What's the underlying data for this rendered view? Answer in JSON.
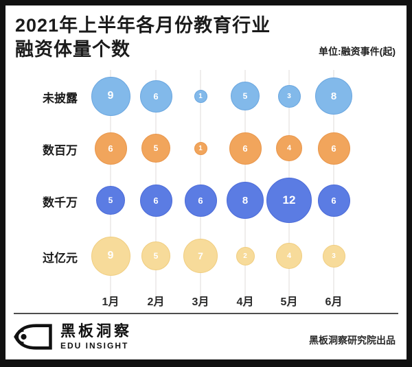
{
  "header": {
    "title_line1": "2021年上半年各月份教育行业",
    "title_line2": "融资体量个数",
    "unit_label": "单位:融资事件(起)"
  },
  "chart_data": {
    "type": "bubble",
    "title": "2021年上半年各月份教育行业融资体量个数",
    "unit": "单位:融资事件(起)",
    "categories": [
      "1月",
      "2月",
      "3月",
      "4月",
      "5月",
      "6月"
    ],
    "series": [
      {
        "name": "未披露",
        "color": "#82B9EA",
        "border_color": "#68A5DF",
        "values": [
          9,
          6,
          1,
          5,
          3,
          8
        ]
      },
      {
        "name": "数百万",
        "color": "#F1A55C",
        "border_color": "#E9964B",
        "values": [
          6,
          5,
          1,
          6,
          4,
          6
        ]
      },
      {
        "name": "数千万",
        "color": "#5B7CE3",
        "border_color": "#4C6BD8",
        "values": [
          5,
          6,
          6,
          8,
          12,
          6
        ]
      },
      {
        "name": "过亿元",
        "color": "#F7DB9A",
        "border_color": "#F0CD7F",
        "values": [
          9,
          5,
          7,
          2,
          4,
          3
        ]
      }
    ],
    "size_encoding": "bubble diameter proportional to sqrt(value)",
    "grid": "faint vertical line per month column",
    "legend_position": "none",
    "value_label_color": "#ffffff"
  },
  "footer": {
    "logo_cn": "黑板洞察",
    "logo_en": "EDU INSIGHT",
    "credit": "黑板洞察研究院出品"
  }
}
